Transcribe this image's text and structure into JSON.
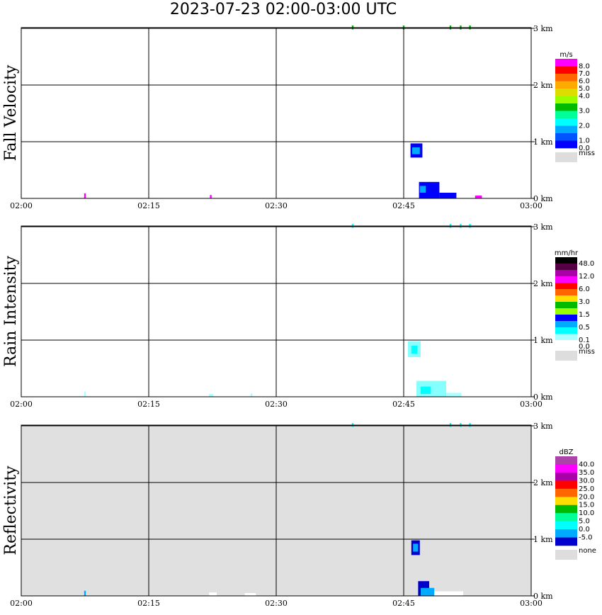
{
  "title": "2023-07-23   02:00-03:00 UTC",
  "chart_data": [
    {
      "type": "heatmap",
      "ylabel": "Fall Velocity",
      "x_ticks": [
        "02:00",
        "02:15",
        "02:30",
        "02:45",
        "03:00"
      ],
      "y_ticks": [
        "0 km",
        "1 km",
        "2 km",
        "3 km"
      ],
      "xlim": [
        "02:00",
        "03:00"
      ],
      "ylim_km": [
        0,
        3.2
      ],
      "background": "#ffffff",
      "colorbar": {
        "unit": "m/s",
        "colors": [
          "#ff00ff",
          "#ff0000",
          "#ff6600",
          "#ffaa00",
          "#dddd00",
          "#99ff00",
          "#00bb00",
          "#00ff99",
          "#00ffff",
          "#00aaff",
          "#0055ff",
          "#0000ff"
        ],
        "labels": [
          "8.0",
          "7.0",
          "6.0",
          "5.0",
          "4.0",
          "3.0",
          "2.0",
          "1.0",
          "0.0"
        ],
        "label_steps": [
          1,
          2,
          3,
          4,
          5,
          7,
          9,
          11,
          12
        ],
        "miss_label": "miss",
        "miss_color": "#dddddd"
      },
      "features": [
        {
          "t0": 45.8,
          "t1": 47.2,
          "h0": 0.72,
          "h1": 0.97,
          "color": "#0000ff"
        },
        {
          "t0": 46.0,
          "t1": 46.9,
          "h0": 0.78,
          "h1": 0.9,
          "color": "#00aaff"
        },
        {
          "t0": 46.8,
          "t1": 49.2,
          "h0": 0.0,
          "h1": 0.29,
          "color": "#0000ff"
        },
        {
          "t0": 49.2,
          "t1": 51.2,
          "h0": 0.0,
          "h1": 0.1,
          "color": "#0000ff"
        },
        {
          "t0": 46.9,
          "t1": 47.6,
          "h0": 0.1,
          "h1": 0.22,
          "color": "#00aaff"
        },
        {
          "t0": 53.4,
          "t1": 54.2,
          "h0": 0.0,
          "h1": 0.05,
          "color": "#ff00ff"
        },
        {
          "t0": 7.4,
          "t1": 7.6,
          "h0": 0.0,
          "h1": 0.09,
          "color": "#ff00ff"
        },
        {
          "t0": 22.2,
          "t1": 22.4,
          "h0": 0.0,
          "h1": 0.06,
          "color": "#ff00ff"
        },
        {
          "t0": 38.9,
          "t1": 39.1,
          "h0": 2.98,
          "h1": 3.05,
          "color": "#00bb00"
        },
        {
          "t0": 44.9,
          "t1": 45.1,
          "h0": 2.98,
          "h1": 3.05,
          "color": "#00bb00"
        },
        {
          "t0": 50.4,
          "t1": 50.6,
          "h0": 2.98,
          "h1": 3.05,
          "color": "#00bb00"
        },
        {
          "t0": 51.6,
          "t1": 51.8,
          "h0": 2.98,
          "h1": 3.05,
          "color": "#00bb00"
        },
        {
          "t0": 52.7,
          "t1": 52.9,
          "h0": 2.98,
          "h1": 3.05,
          "color": "#00bb00"
        }
      ]
    },
    {
      "type": "heatmap",
      "ylabel": "Rain Intensity",
      "x_ticks": [
        "02:00",
        "02:15",
        "02:30",
        "02:45",
        "03:00"
      ],
      "y_ticks": [
        "0 km",
        "1 km",
        "2 km",
        "3 km"
      ],
      "xlim": [
        "02:00",
        "03:00"
      ],
      "ylim_km": [
        0,
        3.2
      ],
      "background": "#ffffff",
      "colorbar": {
        "unit": "mm/hr",
        "colors": [
          "#000000",
          "#550044",
          "#aa00aa",
          "#ff00ff",
          "#ff0000",
          "#ff6600",
          "#ffdd00",
          "#00bb00",
          "#99ff00",
          "#0000ff",
          "#00aaff",
          "#00ffff",
          "#aaffff",
          "#ffffff"
        ],
        "labels": [
          "48.0",
          "12.0",
          "6.0",
          "3.0",
          "1.5",
          "0.5",
          "0.1",
          "0.0"
        ],
        "label_steps": [
          1,
          3,
          5,
          7,
          9,
          11,
          13,
          14
        ],
        "miss_label": "miss",
        "miss_color": "#dddddd"
      },
      "features": [
        {
          "t0": 45.5,
          "t1": 47.0,
          "h0": 0.7,
          "h1": 0.98,
          "color": "#88ffff"
        },
        {
          "t0": 45.9,
          "t1": 46.6,
          "h0": 0.76,
          "h1": 0.9,
          "color": "#00ffff"
        },
        {
          "t0": 46.5,
          "t1": 50.0,
          "h0": 0.0,
          "h1": 0.28,
          "color": "#88ffff"
        },
        {
          "t0": 50.0,
          "t1": 51.8,
          "h0": 0.0,
          "h1": 0.07,
          "color": "#aaffff"
        },
        {
          "t0": 47.0,
          "t1": 48.2,
          "h0": 0.05,
          "h1": 0.18,
          "color": "#00ffff"
        },
        {
          "t0": 7.4,
          "t1": 7.6,
          "h0": 0.0,
          "h1": 0.09,
          "color": "#aaffff"
        },
        {
          "t0": 22.1,
          "t1": 22.6,
          "h0": 0.0,
          "h1": 0.05,
          "color": "#aaffff"
        },
        {
          "t0": 27.0,
          "t1": 27.2,
          "h0": 0.0,
          "h1": 0.06,
          "color": "#aaffff"
        },
        {
          "t0": 38.9,
          "t1": 39.1,
          "h0": 2.98,
          "h1": 3.05,
          "color": "#00ffff"
        },
        {
          "t0": 50.4,
          "t1": 50.6,
          "h0": 2.98,
          "h1": 3.05,
          "color": "#00ffff"
        },
        {
          "t0": 51.6,
          "t1": 51.8,
          "h0": 2.98,
          "h1": 3.05,
          "color": "#00ffff"
        },
        {
          "t0": 52.7,
          "t1": 52.9,
          "h0": 2.98,
          "h1": 3.05,
          "color": "#00ffff"
        }
      ]
    },
    {
      "type": "heatmap",
      "ylabel": "Reflectivity",
      "x_ticks": [
        "02:00",
        "02:15",
        "02:30",
        "02:45",
        "03:00"
      ],
      "y_ticks": [
        "0 km",
        "1 km",
        "2 km",
        "3 km"
      ],
      "xlim": [
        "02:00",
        "03:00"
      ],
      "ylim_km": [
        0,
        3.2
      ],
      "background": "#e0e0e0",
      "colorbar": {
        "unit": "dBZ",
        "colors": [
          "#aa44aa",
          "#ff00ff",
          "#aa00aa",
          "#ff0000",
          "#ff6600",
          "#ffdd00",
          "#00bb00",
          "#00ff99",
          "#00ffff",
          "#00aaff",
          "#0000cc"
        ],
        "labels": [
          "40.0",
          "35.0",
          "30.0",
          "25.0",
          "20.0",
          "15.0",
          "10.0",
          "5.0",
          "0.0",
          "-5.0"
        ],
        "label_steps": [
          1,
          2,
          3,
          4,
          5,
          6,
          7,
          8,
          9,
          10
        ],
        "miss_label": "none",
        "miss_color": "#dddddd"
      },
      "features": [
        {
          "t0": 45.9,
          "t1": 46.9,
          "h0": 0.72,
          "h1": 0.98,
          "color": "#0000cc"
        },
        {
          "t0": 46.1,
          "t1": 46.7,
          "h0": 0.78,
          "h1": 0.92,
          "color": "#00aaff"
        },
        {
          "t0": 46.7,
          "t1": 48.0,
          "h0": 0.0,
          "h1": 0.26,
          "color": "#0000cc"
        },
        {
          "t0": 47.0,
          "t1": 48.6,
          "h0": 0.0,
          "h1": 0.14,
          "color": "#00aaff"
        },
        {
          "t0": 48.6,
          "t1": 52.0,
          "h0": 0.0,
          "h1": 0.08,
          "color": "#ffffff"
        },
        {
          "t0": 22.1,
          "t1": 23.0,
          "h0": 0.0,
          "h1": 0.06,
          "color": "#ffffff"
        },
        {
          "t0": 26.3,
          "t1": 27.6,
          "h0": 0.0,
          "h1": 0.05,
          "color": "#ffffff"
        },
        {
          "t0": 7.4,
          "t1": 7.6,
          "h0": 0.0,
          "h1": 0.09,
          "color": "#00aaff"
        },
        {
          "t0": 38.9,
          "t1": 39.1,
          "h0": 2.98,
          "h1": 3.05,
          "color": "#00ffff"
        },
        {
          "t0": 50.4,
          "t1": 50.6,
          "h0": 2.98,
          "h1": 3.05,
          "color": "#00ffff"
        },
        {
          "t0": 51.6,
          "t1": 51.8,
          "h0": 2.98,
          "h1": 3.05,
          "color": "#00ffff"
        },
        {
          "t0": 52.7,
          "t1": 52.9,
          "h0": 2.98,
          "h1": 3.05,
          "color": "#00ffff"
        }
      ]
    }
  ]
}
